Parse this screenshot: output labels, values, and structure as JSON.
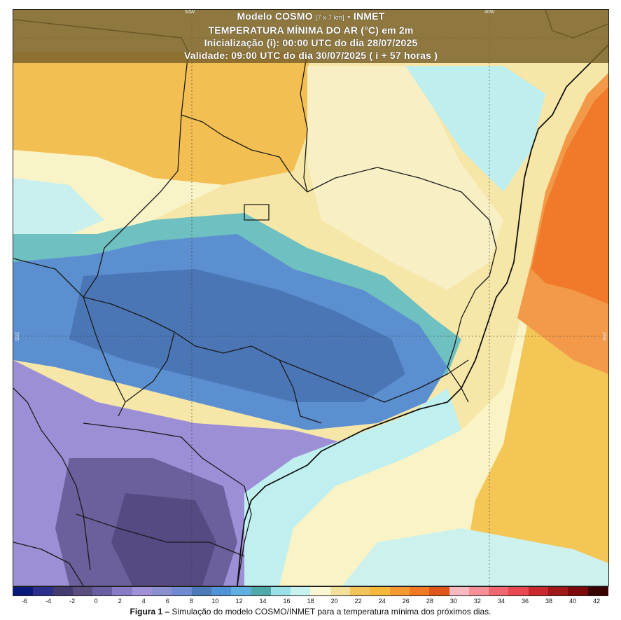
{
  "header": {
    "line1_prefix": "Modelo COSMO",
    "line1_res": "[7 x 7 km]",
    "line1_suffix": "- INMET",
    "line2": "TEMPERATURA MÍNIMA DO AR (°C) em 2m",
    "line3": "Inicialização (i): 00:00 UTC do dia 28/07/2025",
    "line4": "Validade: 09:00 UTC do dia 30/07/2025 ( i + 57 horas )"
  },
  "grid_labels": {
    "top_left": "50W",
    "top_right": "40W",
    "left_mid": "20S",
    "right_mid": "20S"
  },
  "colorbar": {
    "colors": [
      "#0b1a7a",
      "#2c2f8c",
      "#443c6e",
      "#5a4d80",
      "#6a5fa0",
      "#8a7cc4",
      "#9f90d8",
      "#8a8fd0",
      "#6f8ad0",
      "#4c7ab8",
      "#4f92d6",
      "#5fb0e0",
      "#4fa9a8",
      "#9ae0e8",
      "#c8f2f0",
      "#fbf7d4",
      "#f2e09a",
      "#f2c45a",
      "#f5b83a",
      "#f59a30",
      "#f07a22",
      "#e0561a",
      "#f7b8c0",
      "#f59098",
      "#ef6870",
      "#e84850",
      "#c82a30",
      "#a01818",
      "#7a0a0a",
      "#3a0000"
    ],
    "labels": [
      "-6",
      "-4",
      "-2",
      "0",
      "2",
      "4",
      "6",
      "8",
      "10",
      "12",
      "14",
      "16",
      "18",
      "20",
      "22",
      "24",
      "26",
      "28",
      "30",
      "32",
      "34",
      "36",
      "38",
      "40",
      "42"
    ]
  },
  "caption": {
    "bold": "Figura 1 –",
    "text": " Simulação do modelo COSMO/INMET para a temperatura mínima dos próximos dias."
  }
}
